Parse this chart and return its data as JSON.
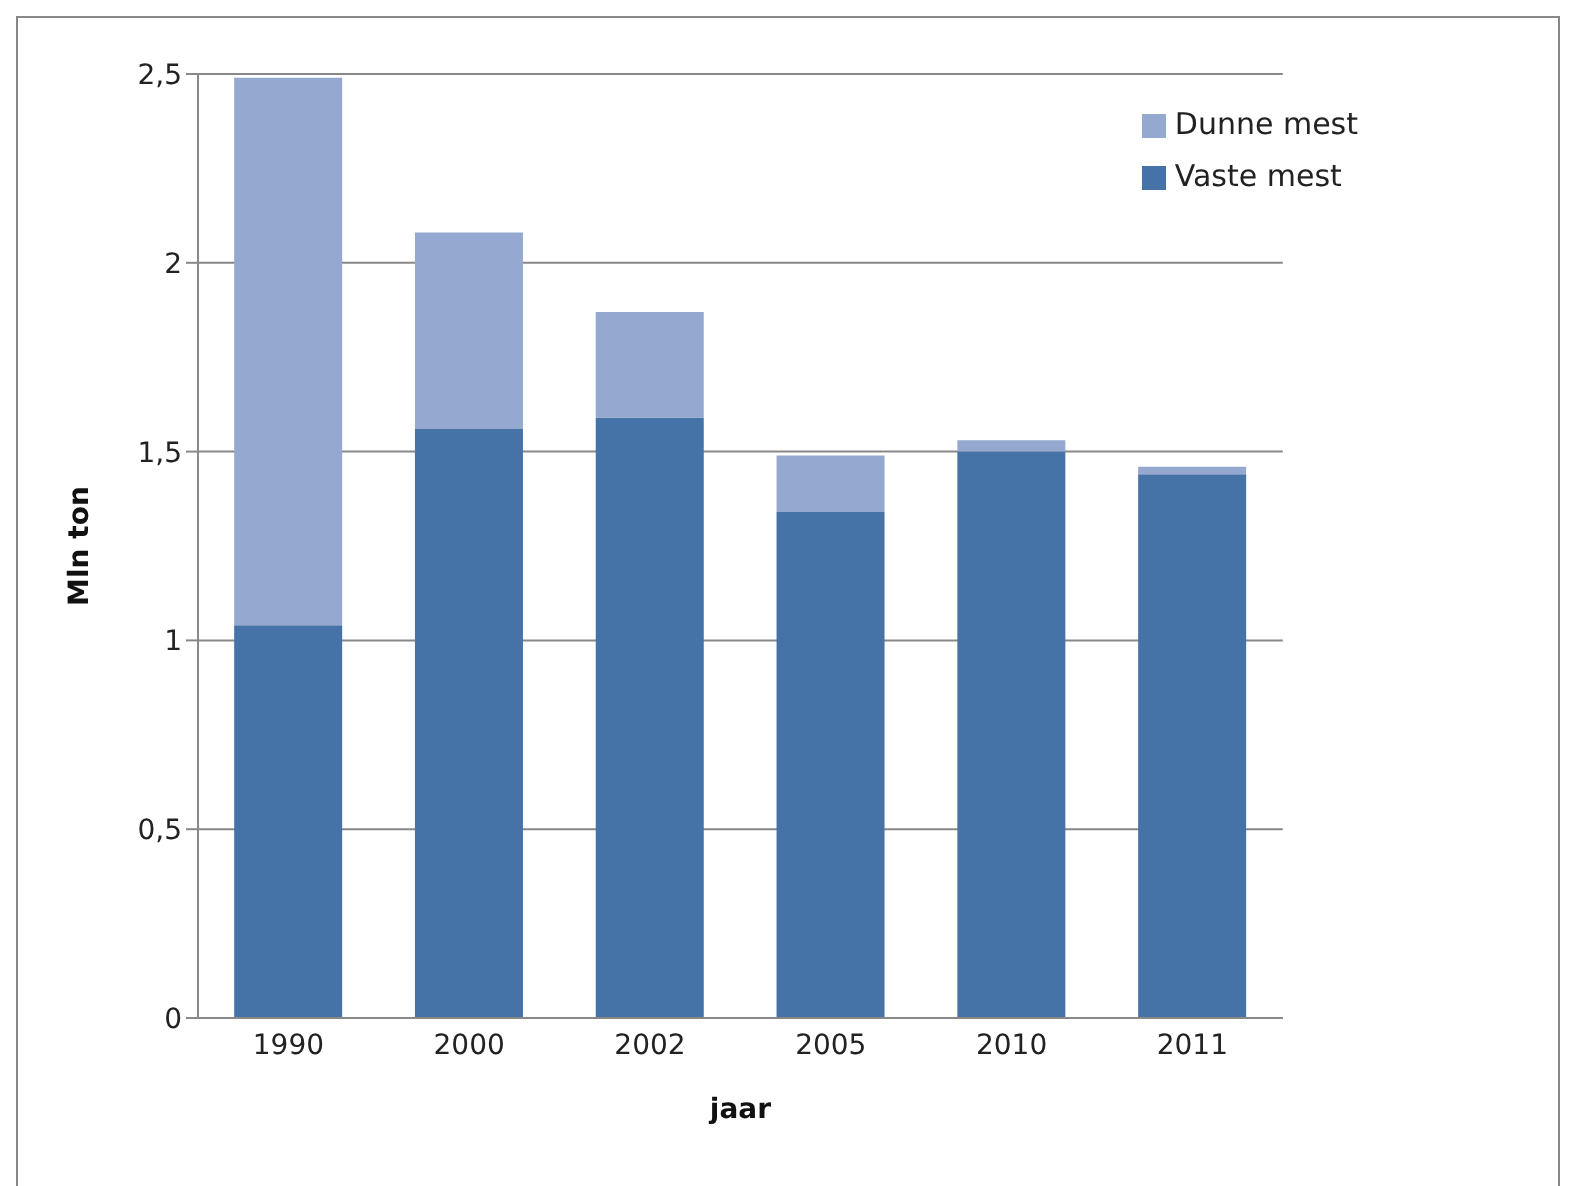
{
  "chart_data": {
    "type": "bar",
    "stacked": true,
    "xlabel": "jaar",
    "ylabel": "Mln ton",
    "categories": [
      "1990",
      "2000",
      "2002",
      "2005",
      "2010",
      "2011"
    ],
    "series": [
      {
        "name": "Vaste mest",
        "color": "#4572a7",
        "values": [
          1.04,
          1.56,
          1.59,
          1.34,
          1.5,
          1.44
        ]
      },
      {
        "name": "Dunne mest",
        "color": "#95a9d0",
        "values": [
          1.45,
          0.52,
          0.28,
          0.15,
          0.03,
          0.02
        ]
      }
    ],
    "ylim": [
      0,
      2.5
    ],
    "yticks": [
      {
        "value": 0,
        "label": "0"
      },
      {
        "value": 0.5,
        "label": "0,5"
      },
      {
        "value": 1,
        "label": "1"
      },
      {
        "value": 1.5,
        "label": "1,5"
      },
      {
        "value": 2,
        "label": "2"
      },
      {
        "value": 2.5,
        "label": "2,5"
      }
    ],
    "grid": "y",
    "legend": "top right"
  }
}
